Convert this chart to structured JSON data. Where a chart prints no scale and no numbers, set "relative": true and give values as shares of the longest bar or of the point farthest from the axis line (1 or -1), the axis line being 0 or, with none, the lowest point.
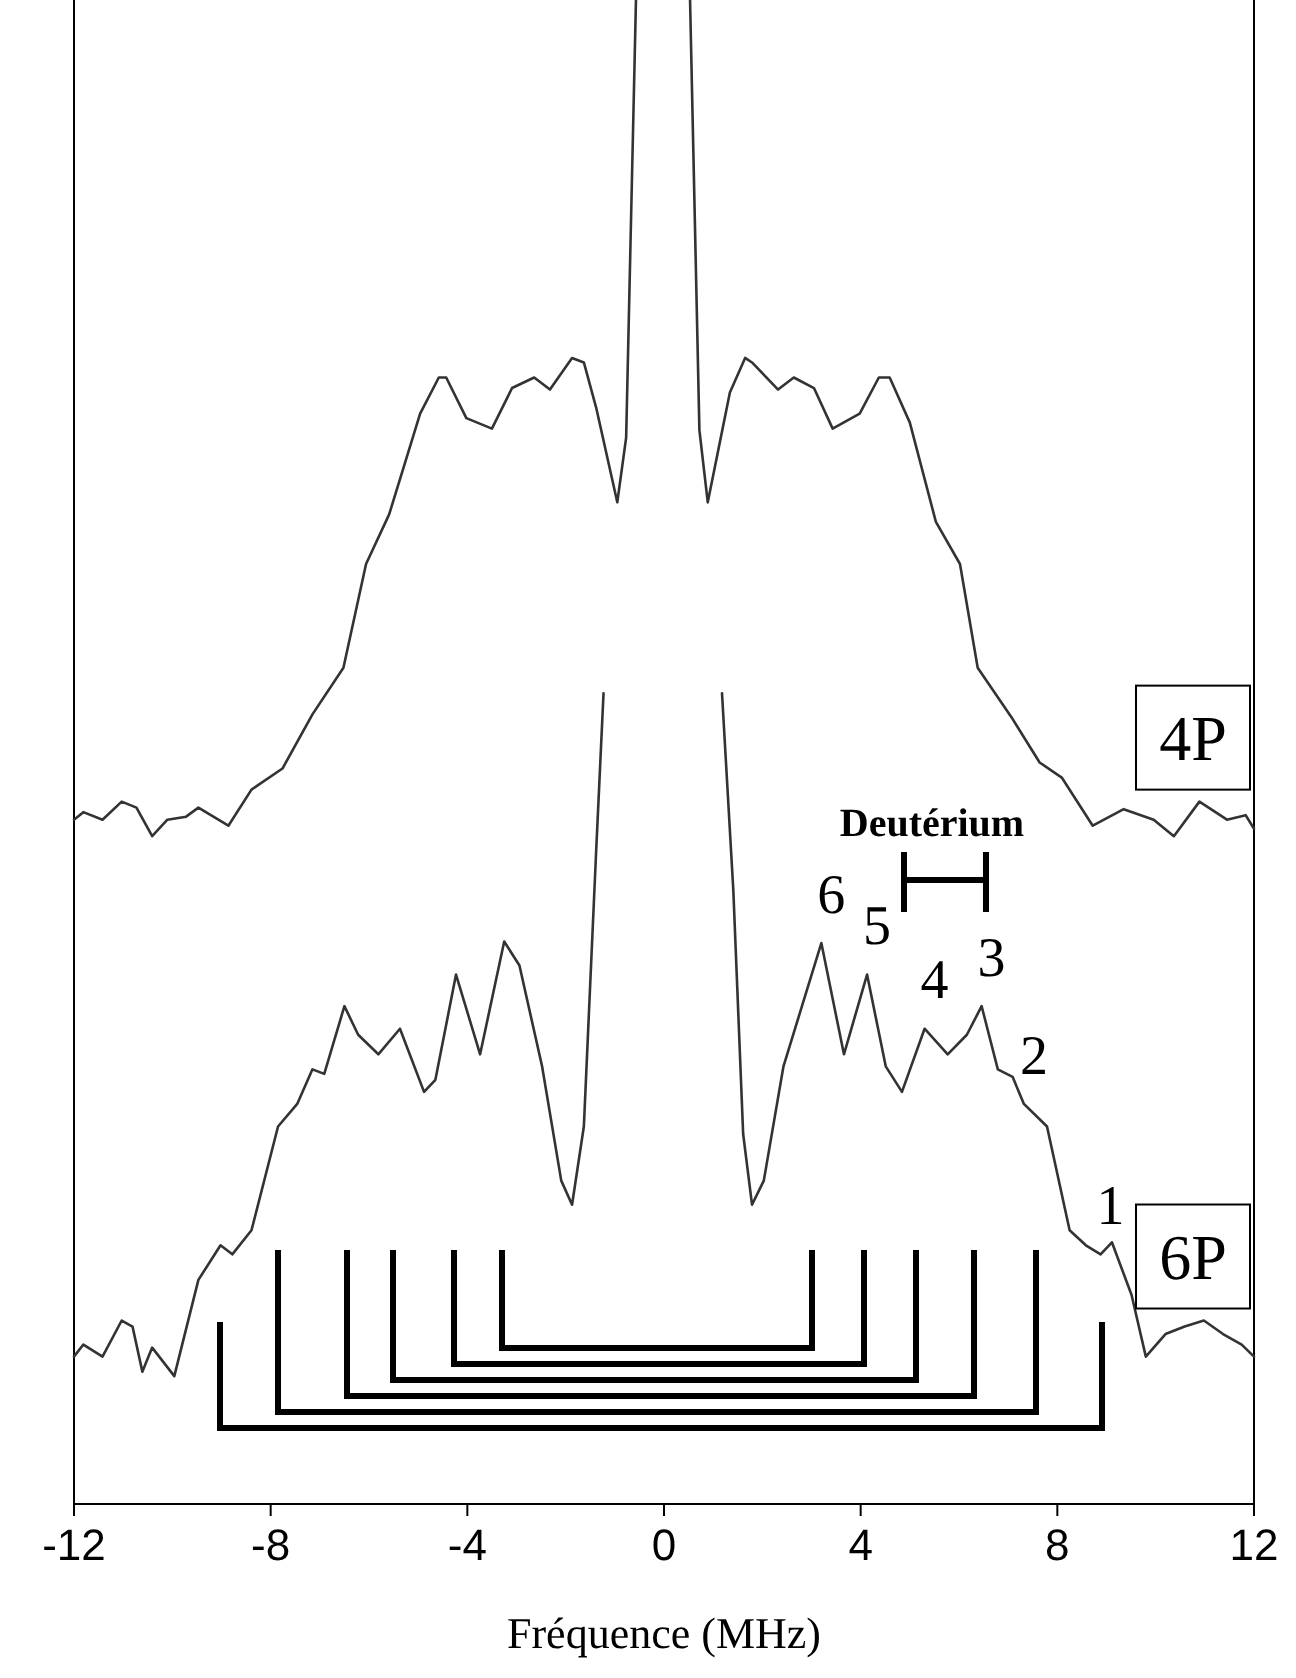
{
  "chart_data": {
    "type": "line",
    "relative": true,
    "xlabel": "Fréquence (MHz)",
    "xlim": [
      -12,
      12
    ],
    "xticks": [
      -12,
      -8,
      -4,
      0,
      4,
      8,
      12
    ],
    "tick_labels": "x",
    "grid": false,
    "legend": false,
    "marker": "none",
    "line_style": "solid",
    "series": [
      {
        "name": "4P",
        "color": "#333333",
        "x": [
          -12.0,
          -11.81,
          -11.42,
          -11.03,
          -10.73,
          -10.41,
          -10.1,
          -9.72,
          -9.47,
          -8.86,
          -8.39,
          -7.76,
          -7.15,
          -6.52,
          -6.06,
          -5.59,
          -4.96,
          -4.58,
          -4.43,
          -4.02,
          -3.5,
          -3.09,
          -2.64,
          -2.32,
          -1.87,
          -1.63,
          -1.38,
          -0.95,
          -0.77,
          -0.57,
          0,
          0.53,
          0.72,
          0.89,
          1.34,
          1.65,
          1.79,
          2.32,
          2.64,
          3.05,
          3.43,
          3.98,
          4.37,
          4.59,
          5.0,
          5.53,
          6.02,
          6.38,
          7.07,
          7.64,
          8.09,
          8.72,
          9.35,
          9.96,
          10.37,
          10.89,
          11.45,
          11.83,
          12.0
        ],
        "values": [
          0.455,
          0.46,
          0.455,
          0.467,
          0.463,
          0.444,
          0.455,
          0.457,
          0.463,
          0.451,
          0.475,
          0.489,
          0.525,
          0.556,
          0.625,
          0.658,
          0.725,
          0.749,
          0.749,
          0.722,
          0.715,
          0.742,
          0.749,
          0.741,
          0.762,
          0.759,
          0.729,
          0.666,
          0.709,
          1,
          null,
          1,
          0.714,
          0.666,
          0.739,
          0.762,
          0.759,
          0.741,
          0.749,
          0.742,
          0.715,
          0.725,
          0.749,
          0.749,
          0.719,
          0.653,
          0.625,
          0.556,
          0.523,
          0.493,
          0.483,
          0.451,
          0.462,
          0.455,
          0.444,
          0.467,
          0.455,
          0.458,
          0.449
        ]
      },
      {
        "name": "6P",
        "color": "#333333",
        "x": [
          -12.0,
          -11.81,
          -11.42,
          -11.03,
          -10.81,
          -10.61,
          -10.41,
          -9.96,
          -9.47,
          -9.02,
          -8.78,
          -8.39,
          -7.85,
          -7.46,
          -7.15,
          -6.91,
          -6.5,
          -6.22,
          -5.81,
          -5.37,
          -4.88,
          -4.65,
          -4.23,
          -3.74,
          -3.25,
          -2.94,
          -2.48,
          -2.09,
          -1.87,
          -1.63,
          -1.38,
          -1.23,
          0,
          1.18,
          1.41,
          1.61,
          1.79,
          2.03,
          2.43,
          3.2,
          3.66,
          4.13,
          4.51,
          4.84,
          5.3,
          5.77,
          6.16,
          6.46,
          6.79,
          7.09,
          7.32,
          7.79,
          8.25,
          8.58,
          8.88,
          9.11,
          9.51,
          9.8,
          10.2,
          10.59,
          10.98,
          11.37,
          11.75,
          12.0
        ],
        "values": [
          0.098,
          0.106,
          0.098,
          0.122,
          0.118,
          0.088,
          0.104,
          0.085,
          0.149,
          0.172,
          0.166,
          0.182,
          0.251,
          0.266,
          0.289,
          0.286,
          0.331,
          0.312,
          0.299,
          0.316,
          0.274,
          0.282,
          0.352,
          0.299,
          0.374,
          0.358,
          0.291,
          0.215,
          0.199,
          0.251,
          0.434,
          0.539,
          null,
          0.539,
          0.408,
          0.246,
          0.199,
          0.215,
          0.291,
          0.373,
          0.299,
          0.352,
          0.291,
          0.274,
          0.316,
          0.299,
          0.312,
          0.331,
          0.289,
          0.284,
          0.266,
          0.251,
          0.182,
          0.172,
          0.166,
          0.174,
          0.139,
          0.098,
          0.113,
          0.118,
          0.122,
          0.113,
          0.106,
          0.098
        ]
      }
    ],
    "annotations": [
      {
        "text": "6",
        "x": 3.2,
        "y": 0.373
      },
      {
        "text": "5",
        "x": 4.13,
        "y": 0.352
      },
      {
        "text": "4",
        "x": 5.3,
        "y": 0.316
      },
      {
        "text": "3",
        "x": 6.46,
        "y": 0.331
      },
      {
        "text": "2",
        "x": 7.32,
        "y": 0.266
      },
      {
        "text": "1",
        "x": 8.88,
        "y": 0.166
      },
      "Deutérium"
    ]
  }
}
